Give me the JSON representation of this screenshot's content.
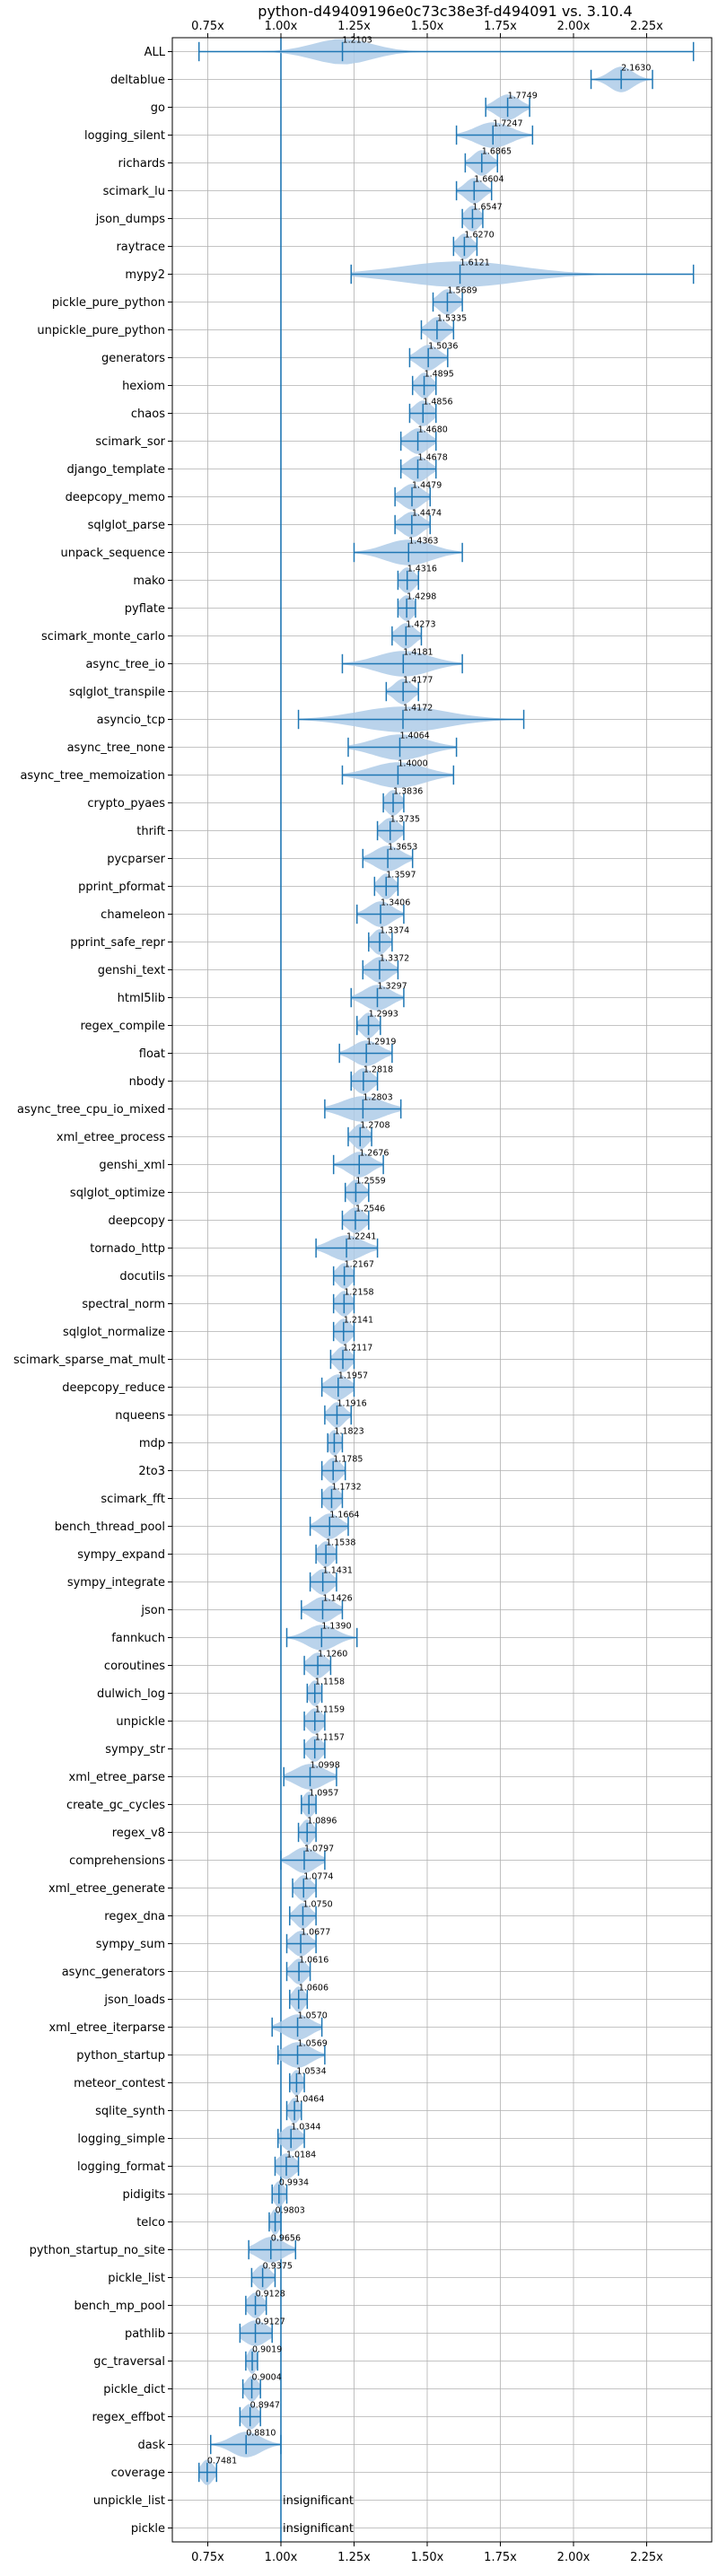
{
  "chart_data": {
    "type": "violin",
    "title": "python-d49409196e0c73c38e3f-d494091 vs. 3.10.4",
    "xlim": [
      0.62,
      2.5
    ],
    "xticks": [
      0.75,
      1.0,
      1.25,
      1.5,
      1.75,
      2.0,
      2.25
    ],
    "xtick_labels": [
      "0.75x",
      "1.00x",
      "1.25x",
      "1.50x",
      "1.75x",
      "2.00x",
      "2.25x"
    ],
    "reference_line": 1.0,
    "grid": true,
    "color": "#1f77b4",
    "fill_color": "#aecbe8",
    "rows": [
      {
        "name": "ALL",
        "mean": 1.2103,
        "min": 0.72,
        "max": 2.41,
        "spread": 0.1
      },
      {
        "name": "deltablue",
        "mean": 2.163,
        "min": 2.06,
        "max": 2.27,
        "spread": 0.04
      },
      {
        "name": "go",
        "mean": 1.7749,
        "min": 1.7,
        "max": 1.85,
        "spread": 0.04
      },
      {
        "name": "logging_silent",
        "mean": 1.7247,
        "min": 1.6,
        "max": 1.86,
        "spread": 0.06
      },
      {
        "name": "richards",
        "mean": 1.6865,
        "min": 1.63,
        "max": 1.74,
        "spread": 0.03
      },
      {
        "name": "scimark_lu",
        "mean": 1.6604,
        "min": 1.6,
        "max": 1.72,
        "spread": 0.03
      },
      {
        "name": "json_dumps",
        "mean": 1.6547,
        "min": 1.62,
        "max": 1.69,
        "spread": 0.025
      },
      {
        "name": "raytrace",
        "mean": 1.627,
        "min": 1.59,
        "max": 1.67,
        "spread": 0.025
      },
      {
        "name": "mypy2",
        "mean": 1.6121,
        "min": 1.24,
        "max": 2.41,
        "spread": 0.2
      },
      {
        "name": "pickle_pure_python",
        "mean": 1.5689,
        "min": 1.52,
        "max": 1.62,
        "spread": 0.03
      },
      {
        "name": "unpickle_pure_python",
        "mean": 1.5335,
        "min": 1.48,
        "max": 1.59,
        "spread": 0.03
      },
      {
        "name": "generators",
        "mean": 1.5036,
        "min": 1.44,
        "max": 1.57,
        "spread": 0.035
      },
      {
        "name": "hexiom",
        "mean": 1.4895,
        "min": 1.45,
        "max": 1.53,
        "spread": 0.025
      },
      {
        "name": "chaos",
        "mean": 1.4856,
        "min": 1.44,
        "max": 1.53,
        "spread": 0.03
      },
      {
        "name": "scimark_sor",
        "mean": 1.468,
        "min": 1.41,
        "max": 1.53,
        "spread": 0.035
      },
      {
        "name": "django_template",
        "mean": 1.4678,
        "min": 1.41,
        "max": 1.53,
        "spread": 0.035
      },
      {
        "name": "deepcopy_memo",
        "mean": 1.4479,
        "min": 1.39,
        "max": 1.51,
        "spread": 0.035
      },
      {
        "name": "sqlglot_parse",
        "mean": 1.4474,
        "min": 1.39,
        "max": 1.51,
        "spread": 0.035
      },
      {
        "name": "unpack_sequence",
        "mean": 1.4363,
        "min": 1.25,
        "max": 1.62,
        "spread": 0.08
      },
      {
        "name": "mako",
        "mean": 1.4316,
        "min": 1.4,
        "max": 1.47,
        "spread": 0.025
      },
      {
        "name": "pyflate",
        "mean": 1.4298,
        "min": 1.4,
        "max": 1.46,
        "spread": 0.025
      },
      {
        "name": "scimark_monte_carlo",
        "mean": 1.4273,
        "min": 1.38,
        "max": 1.48,
        "spread": 0.03
      },
      {
        "name": "async_tree_io",
        "mean": 1.4181,
        "min": 1.21,
        "max": 1.62,
        "spread": 0.09
      },
      {
        "name": "sqlglot_transpile",
        "mean": 1.4177,
        "min": 1.36,
        "max": 1.47,
        "spread": 0.03
      },
      {
        "name": "asyncio_tcp",
        "mean": 1.4172,
        "min": 1.06,
        "max": 1.83,
        "spread": 0.15
      },
      {
        "name": "async_tree_none",
        "mean": 1.4064,
        "min": 1.23,
        "max": 1.6,
        "spread": 0.09
      },
      {
        "name": "async_tree_memoization",
        "mean": 1.4,
        "min": 1.21,
        "max": 1.59,
        "spread": 0.09
      },
      {
        "name": "crypto_pyaes",
        "mean": 1.3836,
        "min": 1.35,
        "max": 1.42,
        "spread": 0.025
      },
      {
        "name": "thrift",
        "mean": 1.3735,
        "min": 1.33,
        "max": 1.42,
        "spread": 0.03
      },
      {
        "name": "pycparser",
        "mean": 1.3653,
        "min": 1.28,
        "max": 1.45,
        "spread": 0.045
      },
      {
        "name": "pprint_pformat",
        "mean": 1.3597,
        "min": 1.32,
        "max": 1.4,
        "spread": 0.025
      },
      {
        "name": "chameleon",
        "mean": 1.3406,
        "min": 1.26,
        "max": 1.42,
        "spread": 0.04
      },
      {
        "name": "pprint_safe_repr",
        "mean": 1.3374,
        "min": 1.3,
        "max": 1.38,
        "spread": 0.025
      },
      {
        "name": "genshi_text",
        "mean": 1.3372,
        "min": 1.28,
        "max": 1.4,
        "spread": 0.035
      },
      {
        "name": "html5lib",
        "mean": 1.3297,
        "min": 1.24,
        "max": 1.42,
        "spread": 0.045
      },
      {
        "name": "regex_compile",
        "mean": 1.2993,
        "min": 1.26,
        "max": 1.34,
        "spread": 0.025
      },
      {
        "name": "float",
        "mean": 1.2919,
        "min": 1.2,
        "max": 1.38,
        "spread": 0.045
      },
      {
        "name": "nbody",
        "mean": 1.2818,
        "min": 1.24,
        "max": 1.33,
        "spread": 0.03
      },
      {
        "name": "async_tree_cpu_io_mixed",
        "mean": 1.2803,
        "min": 1.15,
        "max": 1.41,
        "spread": 0.07
      },
      {
        "name": "xml_etree_process",
        "mean": 1.2708,
        "min": 1.23,
        "max": 1.31,
        "spread": 0.025
      },
      {
        "name": "genshi_xml",
        "mean": 1.2676,
        "min": 1.18,
        "max": 1.35,
        "spread": 0.04
      },
      {
        "name": "sqlglot_optimize",
        "mean": 1.2559,
        "min": 1.22,
        "max": 1.3,
        "spread": 0.025
      },
      {
        "name": "deepcopy",
        "mean": 1.2546,
        "min": 1.21,
        "max": 1.3,
        "spread": 0.03
      },
      {
        "name": "tornado_http",
        "mean": 1.2241,
        "min": 1.12,
        "max": 1.33,
        "spread": 0.055
      },
      {
        "name": "docutils",
        "mean": 1.2167,
        "min": 1.18,
        "max": 1.25,
        "spread": 0.025
      },
      {
        "name": "spectral_norm",
        "mean": 1.2158,
        "min": 1.18,
        "max": 1.25,
        "spread": 0.025
      },
      {
        "name": "sqlglot_normalize",
        "mean": 1.2141,
        "min": 1.18,
        "max": 1.25,
        "spread": 0.025
      },
      {
        "name": "scimark_sparse_mat_mult",
        "mean": 1.2117,
        "min": 1.17,
        "max": 1.25,
        "spread": 0.025
      },
      {
        "name": "deepcopy_reduce",
        "mean": 1.1957,
        "min": 1.14,
        "max": 1.25,
        "spread": 0.035
      },
      {
        "name": "nqueens",
        "mean": 1.1916,
        "min": 1.15,
        "max": 1.24,
        "spread": 0.025
      },
      {
        "name": "mdp",
        "mean": 1.1823,
        "min": 1.16,
        "max": 1.21,
        "spread": 0.02
      },
      {
        "name": "2to3",
        "mean": 1.1785,
        "min": 1.14,
        "max": 1.22,
        "spread": 0.025
      },
      {
        "name": "scimark_fft",
        "mean": 1.1732,
        "min": 1.14,
        "max": 1.21,
        "spread": 0.025
      },
      {
        "name": "bench_thread_pool",
        "mean": 1.1664,
        "min": 1.1,
        "max": 1.23,
        "spread": 0.035
      },
      {
        "name": "sympy_expand",
        "mean": 1.1538,
        "min": 1.12,
        "max": 1.19,
        "spread": 0.025
      },
      {
        "name": "sympy_integrate",
        "mean": 1.1431,
        "min": 1.1,
        "max": 1.19,
        "spread": 0.03
      },
      {
        "name": "json",
        "mean": 1.1426,
        "min": 1.07,
        "max": 1.21,
        "spread": 0.04
      },
      {
        "name": "fannkuch",
        "mean": 1.139,
        "min": 1.02,
        "max": 1.26,
        "spread": 0.05
      },
      {
        "name": "coroutines",
        "mean": 1.126,
        "min": 1.08,
        "max": 1.17,
        "spread": 0.03
      },
      {
        "name": "dulwich_log",
        "mean": 1.1158,
        "min": 1.09,
        "max": 1.14,
        "spread": 0.02
      },
      {
        "name": "unpickle",
        "mean": 1.1159,
        "min": 1.08,
        "max": 1.15,
        "spread": 0.025
      },
      {
        "name": "sympy_str",
        "mean": 1.1157,
        "min": 1.08,
        "max": 1.15,
        "spread": 0.025
      },
      {
        "name": "xml_etree_parse",
        "mean": 1.0998,
        "min": 1.01,
        "max": 1.19,
        "spread": 0.05
      },
      {
        "name": "create_gc_cycles",
        "mean": 1.0957,
        "min": 1.07,
        "max": 1.12,
        "spread": 0.02
      },
      {
        "name": "regex_v8",
        "mean": 1.0896,
        "min": 1.06,
        "max": 1.12,
        "spread": 0.02
      },
      {
        "name": "comprehensions",
        "mean": 1.0797,
        "min": 1.0,
        "max": 1.15,
        "spread": 0.04
      },
      {
        "name": "xml_etree_generate",
        "mean": 1.0774,
        "min": 1.04,
        "max": 1.12,
        "spread": 0.025
      },
      {
        "name": "regex_dna",
        "mean": 1.075,
        "min": 1.03,
        "max": 1.12,
        "spread": 0.025
      },
      {
        "name": "sympy_sum",
        "mean": 1.0677,
        "min": 1.02,
        "max": 1.12,
        "spread": 0.03
      },
      {
        "name": "async_generators",
        "mean": 1.0616,
        "min": 1.02,
        "max": 1.1,
        "spread": 0.025
      },
      {
        "name": "json_loads",
        "mean": 1.0606,
        "min": 1.03,
        "max": 1.09,
        "spread": 0.02
      },
      {
        "name": "xml_etree_iterparse",
        "mean": 1.057,
        "min": 0.97,
        "max": 1.14,
        "spread": 0.045
      },
      {
        "name": "python_startup",
        "mean": 1.0569,
        "min": 0.99,
        "max": 1.15,
        "spread": 0.045
      },
      {
        "name": "meteor_contest",
        "mean": 1.0534,
        "min": 1.03,
        "max": 1.08,
        "spread": 0.018
      },
      {
        "name": "sqlite_synth",
        "mean": 1.0464,
        "min": 1.02,
        "max": 1.07,
        "spread": 0.018
      },
      {
        "name": "logging_simple",
        "mean": 1.0344,
        "min": 0.99,
        "max": 1.08,
        "spread": 0.03
      },
      {
        "name": "logging_format",
        "mean": 1.0184,
        "min": 0.98,
        "max": 1.06,
        "spread": 0.03
      },
      {
        "name": "pidigits",
        "mean": 0.9934,
        "min": 0.97,
        "max": 1.02,
        "spread": 0.018
      },
      {
        "name": "telco",
        "mean": 0.9803,
        "min": 0.96,
        "max": 1.0,
        "spread": 0.015
      },
      {
        "name": "python_startup_no_site",
        "mean": 0.9656,
        "min": 0.89,
        "max": 1.05,
        "spread": 0.045
      },
      {
        "name": "pickle_list",
        "mean": 0.9375,
        "min": 0.9,
        "max": 0.98,
        "spread": 0.025
      },
      {
        "name": "bench_mp_pool",
        "mean": 0.9128,
        "min": 0.88,
        "max": 0.95,
        "spread": 0.025
      },
      {
        "name": "pathlib",
        "mean": 0.9127,
        "min": 0.86,
        "max": 0.97,
        "spread": 0.04
      },
      {
        "name": "gc_traversal",
        "mean": 0.9019,
        "min": 0.88,
        "max": 0.92,
        "spread": 0.015
      },
      {
        "name": "pickle_dict",
        "mean": 0.9004,
        "min": 0.87,
        "max": 0.93,
        "spread": 0.02
      },
      {
        "name": "regex_effbot",
        "mean": 0.8947,
        "min": 0.86,
        "max": 0.93,
        "spread": 0.025
      },
      {
        "name": "dask",
        "mean": 0.881,
        "min": 0.76,
        "max": 1.0,
        "spread": 0.05
      },
      {
        "name": "coverage",
        "mean": 0.7481,
        "min": 0.72,
        "max": 0.78,
        "spread": 0.02
      },
      {
        "name": "unpickle_list",
        "mean": null,
        "min": null,
        "max": null,
        "spread": 0,
        "note": "insignificant"
      },
      {
        "name": "pickle",
        "mean": null,
        "min": null,
        "max": null,
        "spread": 0,
        "note": "insignificant"
      }
    ]
  }
}
